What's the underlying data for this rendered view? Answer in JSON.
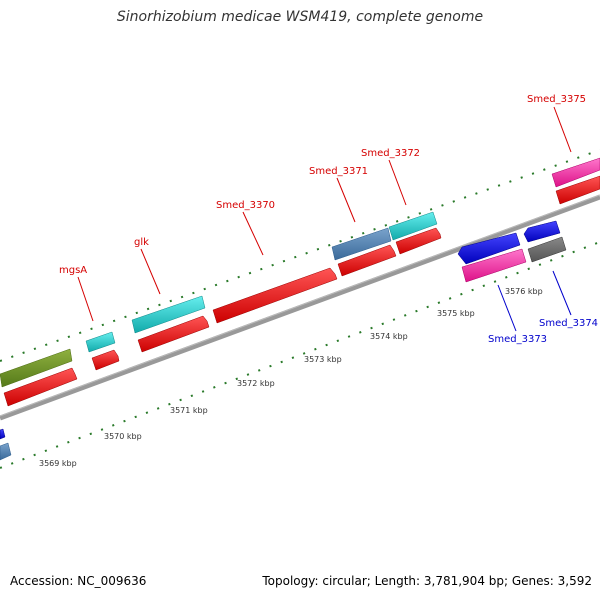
{
  "title": "Sinorhizobium medicae WSM419, complete genome",
  "footer": {
    "accession": "Accession: NC_009636",
    "stats": "Topology: circular; Length: 3,781,904 bp; Genes: 3,592"
  },
  "ticks": [
    "3569 kbp",
    "3570 kbp",
    "3571 kbp",
    "3572 kbp",
    "3573 kbp",
    "3574 kbp",
    "3575 kbp",
    "3576 kbp"
  ],
  "gene_labels_forward": [
    "mgsA",
    "glk",
    "Smed_3370",
    "Smed_3371",
    "Smed_3372",
    "Smed_3375"
  ],
  "gene_labels_reverse": [
    "Smed_3373",
    "Smed_3374"
  ],
  "colors": {
    "cds_red": "#ff0000",
    "pink": "#ff33aa",
    "cyan": "#22cccc",
    "steelblue": "#4f7fb0",
    "olive": "#6b8e23",
    "blue": "#0000ee",
    "gray": "#666666",
    "backbone": "#999999",
    "tick": "#2a7a2a"
  }
}
